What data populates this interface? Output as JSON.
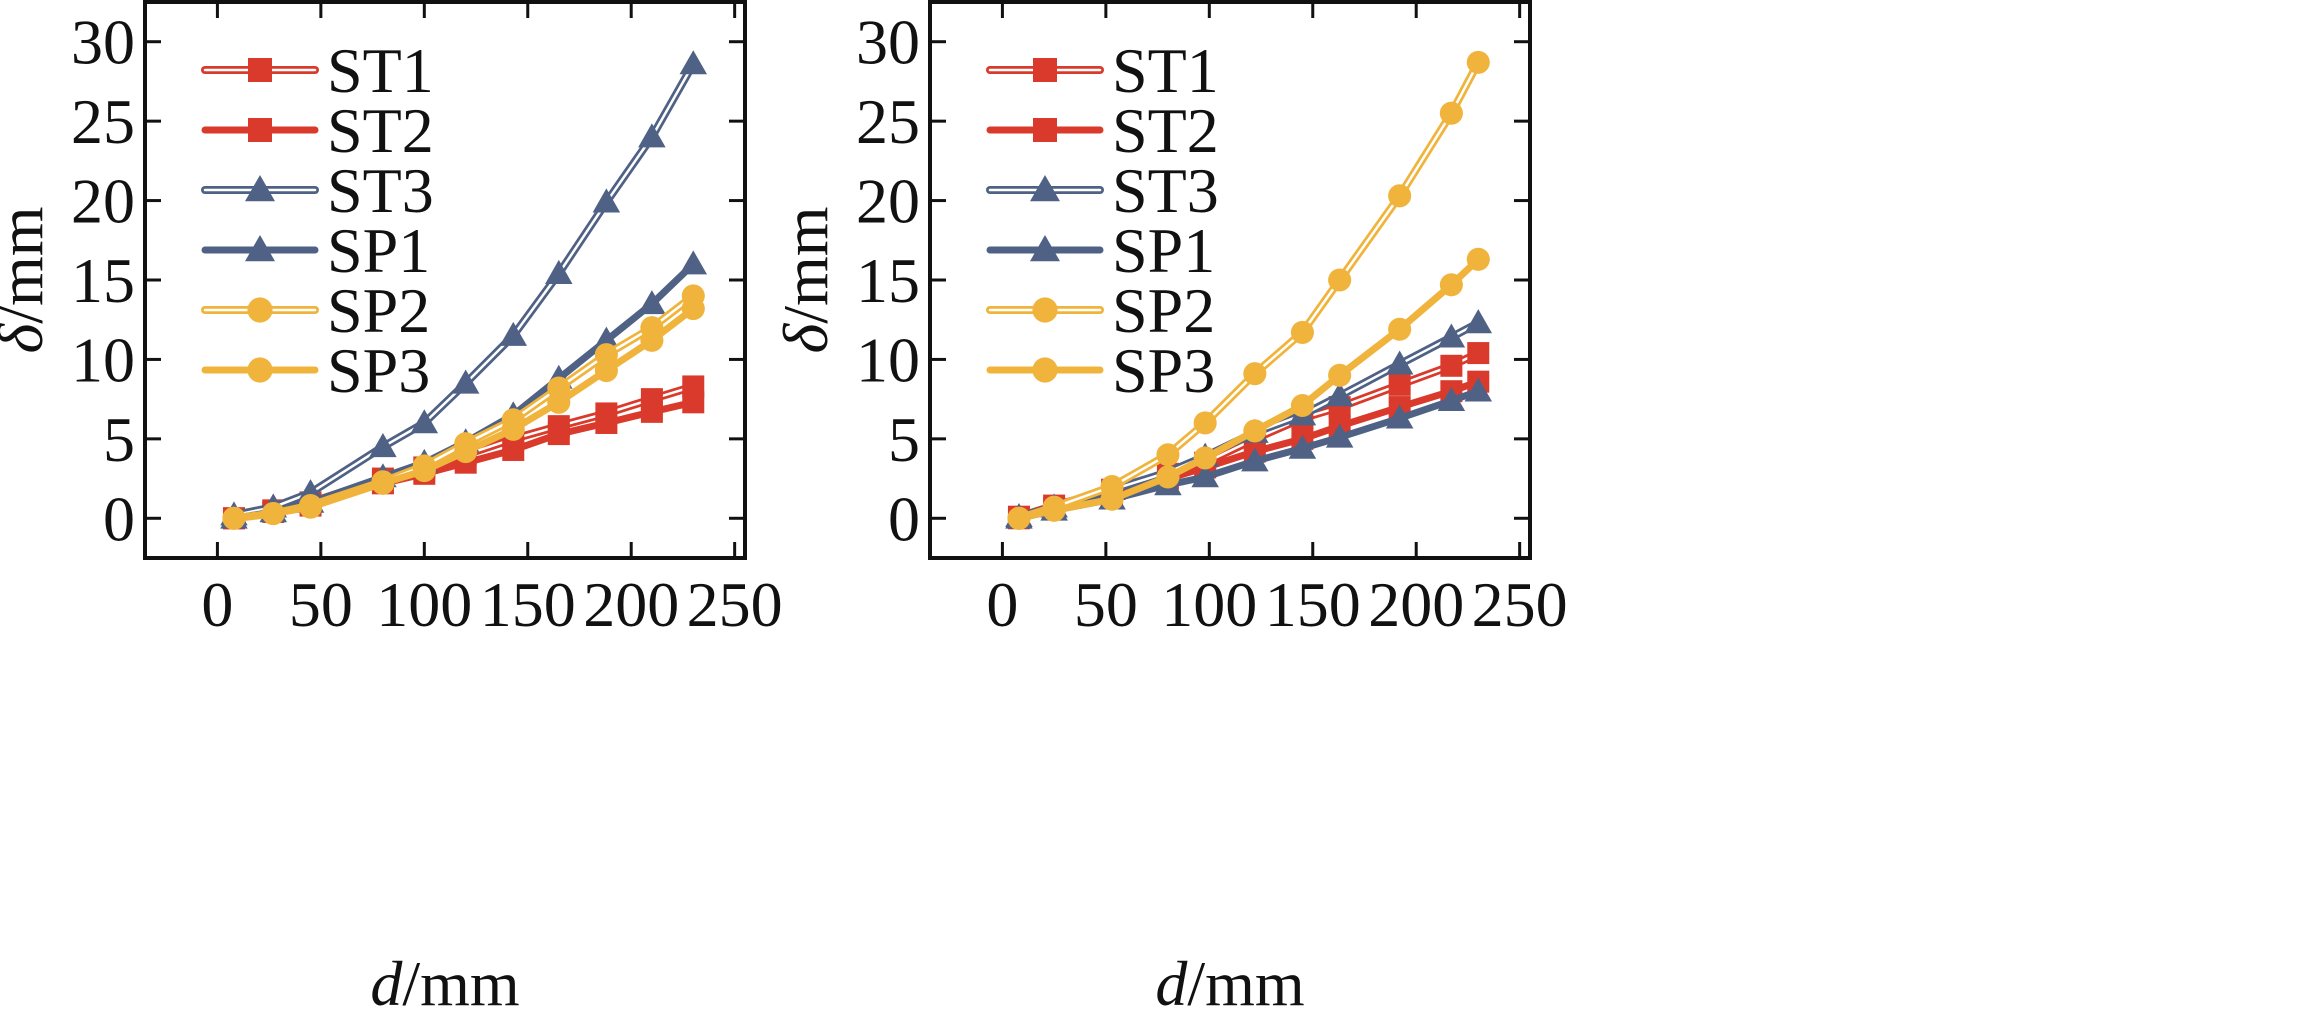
{
  "colors": {
    "red": "#d93a2b",
    "blue": "#4f6285",
    "yellow": "#f0b43c",
    "axis": "#111111"
  },
  "chart_data": [
    {
      "type": "line",
      "xlabel_var": "d",
      "xlabel_unit": "/mm",
      "ylabel_var": "δ",
      "ylabel_unit": "/mm",
      "xlim": [
        -35,
        255
      ],
      "ylim": [
        -2.5,
        32.5
      ],
      "xticks": [
        "0",
        "50",
        "100",
        "150",
        "200",
        "250"
      ],
      "yticks": [
        "0",
        "5",
        "10",
        "15",
        "20",
        "25",
        "30"
      ],
      "grid": false,
      "legend_position": "top-left",
      "series": [
        {
          "name": "ST1",
          "color": "red",
          "line": "double",
          "marker": "square",
          "points": [
            [
              8,
              0
            ],
            [
              27,
              0.5
            ],
            [
              45,
              1.0
            ],
            [
              80,
              2.5
            ],
            [
              100,
              3.2
            ],
            [
              120,
              4.0
            ],
            [
              143,
              5.0
            ],
            [
              165,
              5.8
            ],
            [
              188,
              6.6
            ],
            [
              210,
              7.5
            ],
            [
              230,
              8.3
            ]
          ]
        },
        {
          "name": "ST2",
          "color": "red",
          "line": "solid",
          "marker": "square",
          "points": [
            [
              8,
              0
            ],
            [
              27,
              0.4
            ],
            [
              45,
              0.8
            ],
            [
              80,
              2.2
            ],
            [
              100,
              2.8
            ],
            [
              120,
              3.5
            ],
            [
              143,
              4.3
            ],
            [
              165,
              5.3
            ],
            [
              188,
              6.0
            ],
            [
              210,
              6.7
            ],
            [
              230,
              7.3
            ]
          ]
        },
        {
          "name": "ST3",
          "color": "blue",
          "line": "double",
          "marker": "triangle",
          "points": [
            [
              8,
              0.2
            ],
            [
              27,
              0.7
            ],
            [
              45,
              1.6
            ],
            [
              80,
              4.5
            ],
            [
              100,
              6.0
            ],
            [
              120,
              8.5
            ],
            [
              143,
              11.5
            ],
            [
              165,
              15.4
            ],
            [
              188,
              19.9
            ],
            [
              210,
              24.0
            ],
            [
              230,
              28.6
            ]
          ]
        },
        {
          "name": "SP1",
          "color": "blue",
          "line": "solid",
          "marker": "triangle",
          "points": [
            [
              8,
              0
            ],
            [
              27,
              0.4
            ],
            [
              45,
              1.0
            ],
            [
              80,
              2.6
            ],
            [
              100,
              3.5
            ],
            [
              120,
              4.8
            ],
            [
              143,
              6.5
            ],
            [
              165,
              8.8
            ],
            [
              188,
              11.2
            ],
            [
              210,
              13.5
            ],
            [
              230,
              16.0
            ]
          ]
        },
        {
          "name": "SP2",
          "color": "yellow",
          "line": "double",
          "marker": "circle",
          "points": [
            [
              8,
              0
            ],
            [
              27,
              0.3
            ],
            [
              45,
              0.8
            ],
            [
              80,
              2.3
            ],
            [
              100,
              3.3
            ],
            [
              120,
              4.7
            ],
            [
              143,
              6.2
            ],
            [
              165,
              8.2
            ],
            [
              188,
              10.3
            ],
            [
              210,
              12.0
            ],
            [
              230,
              14.0
            ]
          ]
        },
        {
          "name": "SP3",
          "color": "yellow",
          "line": "solid",
          "marker": "circle",
          "points": [
            [
              8,
              0
            ],
            [
              27,
              0.3
            ],
            [
              45,
              0.7
            ],
            [
              80,
              2.2
            ],
            [
              100,
              3.0
            ],
            [
              120,
              4.2
            ],
            [
              143,
              5.6
            ],
            [
              165,
              7.3
            ],
            [
              188,
              9.3
            ],
            [
              210,
              11.2
            ],
            [
              230,
              13.2
            ]
          ]
        }
      ]
    },
    {
      "type": "line",
      "xlabel_var": "d",
      "xlabel_unit": "/mm",
      "ylabel_var": "δ",
      "ylabel_unit": "/mm",
      "xlim": [
        -35,
        255
      ],
      "ylim": [
        -2.5,
        32.5
      ],
      "xticks": [
        "0",
        "50",
        "100",
        "150",
        "200",
        "250"
      ],
      "yticks": [
        "0",
        "5",
        "10",
        "15",
        "20",
        "25",
        "30"
      ],
      "grid": false,
      "legend_position": "top-left",
      "series": [
        {
          "name": "ST1",
          "color": "red",
          "line": "double",
          "marker": "square",
          "points": [
            [
              8,
              0.1
            ],
            [
              25,
              0.8
            ],
            [
              53,
              1.8
            ],
            [
              80,
              2.8
            ],
            [
              98,
              3.5
            ],
            [
              122,
              5.0
            ],
            [
              145,
              6.3
            ],
            [
              163,
              7.0
            ],
            [
              192,
              8.4
            ],
            [
              217,
              9.6
            ],
            [
              230,
              10.4
            ]
          ]
        },
        {
          "name": "ST2",
          "color": "red",
          "line": "solid",
          "marker": "square",
          "points": [
            [
              8,
              0
            ],
            [
              25,
              0.6
            ],
            [
              53,
              1.4
            ],
            [
              80,
              2.5
            ],
            [
              98,
              3.2
            ],
            [
              122,
              4.2
            ],
            [
              145,
              5.0
            ],
            [
              163,
              5.8
            ],
            [
              192,
              7.0
            ],
            [
              217,
              8.0
            ],
            [
              230,
              8.6
            ]
          ]
        },
        {
          "name": "ST3",
          "color": "blue",
          "line": "double",
          "marker": "triangle",
          "points": [
            [
              8,
              0.1
            ],
            [
              25,
              0.7
            ],
            [
              53,
              1.8
            ],
            [
              80,
              2.9
            ],
            [
              98,
              3.9
            ],
            [
              122,
              5.4
            ],
            [
              145,
              6.5
            ],
            [
              163,
              7.7
            ],
            [
              192,
              9.7
            ],
            [
              217,
              11.4
            ],
            [
              230,
              12.3
            ]
          ]
        },
        {
          "name": "SP1",
          "color": "blue",
          "line": "solid",
          "marker": "triangle",
          "points": [
            [
              8,
              0
            ],
            [
              25,
              0.5
            ],
            [
              53,
              1.2
            ],
            [
              80,
              2.1
            ],
            [
              98,
              2.6
            ],
            [
              122,
              3.6
            ],
            [
              145,
              4.4
            ],
            [
              163,
              5.1
            ],
            [
              192,
              6.3
            ],
            [
              217,
              7.4
            ],
            [
              230,
              8.0
            ]
          ]
        },
        {
          "name": "SP2",
          "color": "yellow",
          "line": "double",
          "marker": "circle",
          "points": [
            [
              8,
              0
            ],
            [
              25,
              0.7
            ],
            [
              53,
              2.0
            ],
            [
              80,
              4.0
            ],
            [
              98,
              6.0
            ],
            [
              122,
              9.1
            ],
            [
              145,
              11.7
            ],
            [
              163,
              15.0
            ],
            [
              192,
              20.3
            ],
            [
              217,
              25.5
            ],
            [
              230,
              28.7
            ]
          ]
        },
        {
          "name": "SP3",
          "color": "yellow",
          "line": "solid",
          "marker": "circle",
          "points": [
            [
              8,
              0
            ],
            [
              25,
              0.5
            ],
            [
              53,
              1.2
            ],
            [
              80,
              2.6
            ],
            [
              98,
              3.8
            ],
            [
              122,
              5.5
            ],
            [
              145,
              7.1
            ],
            [
              163,
              9.0
            ],
            [
              192,
              11.9
            ],
            [
              217,
              14.7
            ],
            [
              230,
              16.3
            ]
          ]
        }
      ]
    }
  ]
}
